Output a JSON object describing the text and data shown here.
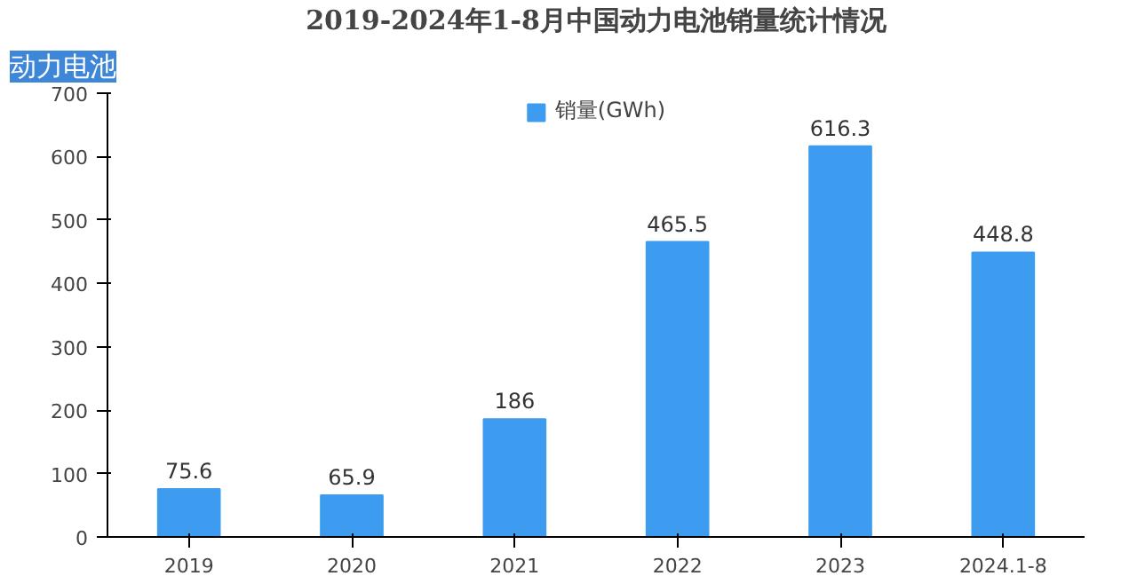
{
  "chart_data": {
    "type": "bar",
    "title": "2019-2024年1-8月中国动力电池销量统计情况",
    "annotations": [
      "动力电池"
    ],
    "categories": [
      "2019",
      "2020",
      "2021",
      "2022",
      "2023",
      "2024.1-8"
    ],
    "series": [
      {
        "name": "销量(GWh)",
        "color": "#3d9cf0",
        "values": [
          75.6,
          65.9,
          186,
          465.5,
          616.3,
          448.8
        ]
      }
    ],
    "ylim": [
      0,
      700
    ],
    "yticks": [
      0,
      100,
      200,
      300,
      400,
      500,
      600,
      700
    ],
    "data_labels": true,
    "legend": "top",
    "grid": false
  }
}
